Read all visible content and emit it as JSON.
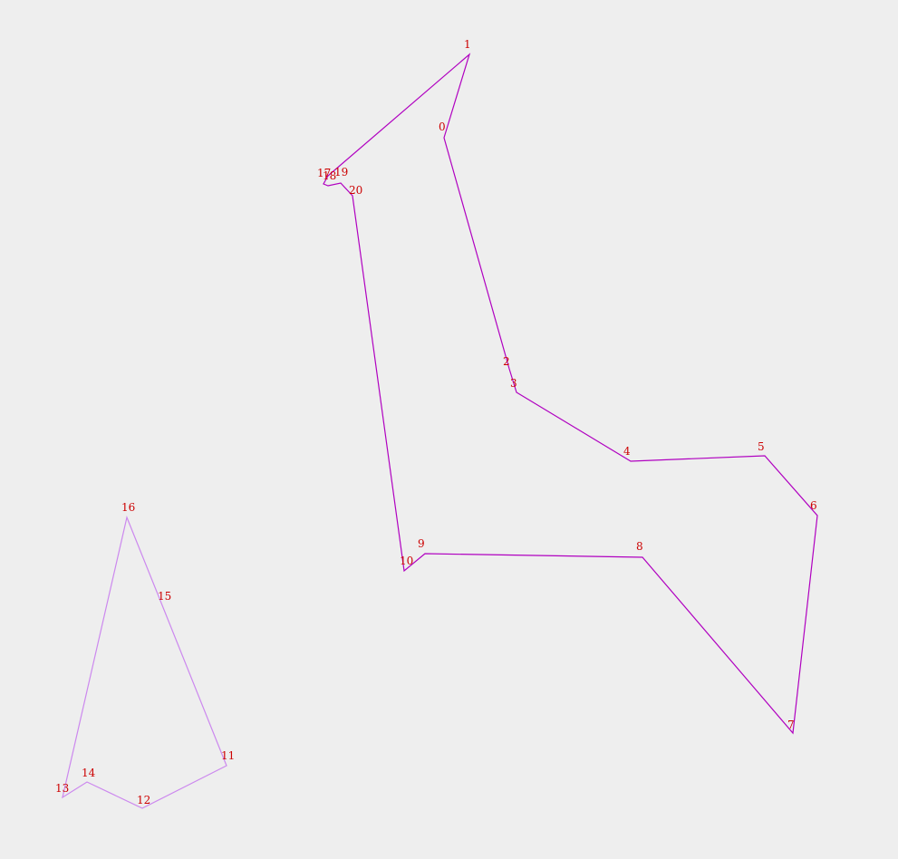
{
  "colors": {
    "background": "#eeeeee",
    "label": "#cc0000",
    "polygon_a": "#b000c0",
    "polygon_b": "#cc88ee"
  },
  "points": [
    {
      "id": "0",
      "label": "0"
    },
    {
      "id": "1",
      "label": "1"
    },
    {
      "id": "2",
      "label": "2"
    },
    {
      "id": "3",
      "label": "3"
    },
    {
      "id": "4",
      "label": "4"
    },
    {
      "id": "5",
      "label": "5"
    },
    {
      "id": "6",
      "label": "6"
    },
    {
      "id": "7",
      "label": "7"
    },
    {
      "id": "8",
      "label": "8"
    },
    {
      "id": "9",
      "label": "9"
    },
    {
      "id": "10",
      "label": "10"
    },
    {
      "id": "11",
      "label": "11"
    },
    {
      "id": "12",
      "label": "12"
    },
    {
      "id": "13",
      "label": "13"
    },
    {
      "id": "14",
      "label": "14"
    },
    {
      "id": "15",
      "label": "15"
    },
    {
      "id": "16",
      "label": "16"
    },
    {
      "id": "17",
      "label": "17"
    },
    {
      "id": "18",
      "label": "18"
    },
    {
      "id": "19",
      "label": "19"
    },
    {
      "id": "20",
      "label": "20"
    }
  ]
}
